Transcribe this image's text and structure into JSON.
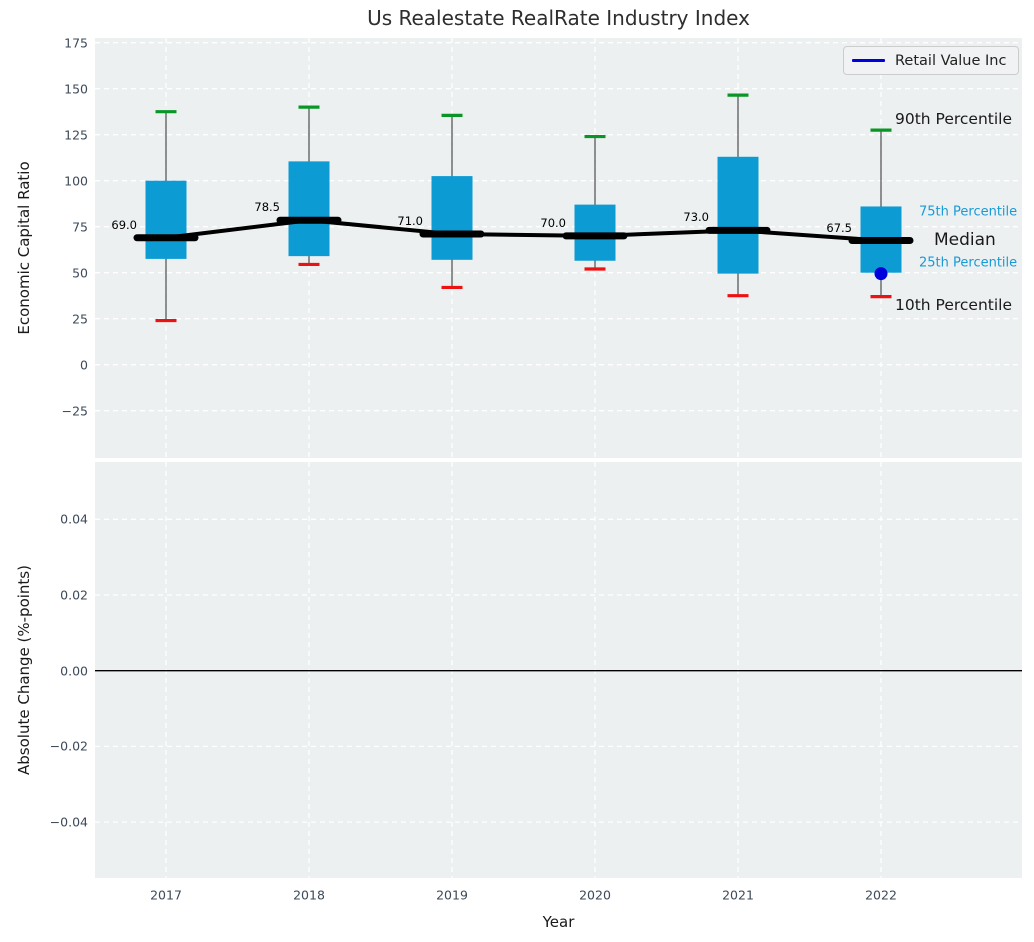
{
  "figure": {
    "legend": {
      "label": "Retail Value Inc"
    },
    "annotations": {
      "p90": "90th Percentile",
      "p75": "75th Percentile",
      "median": "Median",
      "p25": "25th Percentile",
      "p10": "10th Percentile"
    }
  },
  "colors": {
    "box_fill": "#0d9bd3",
    "whisker_line": "#4d4d4d",
    "cap_high_green": "#0a9626",
    "cap_low_red": "#ee1111",
    "median_black": "#000000",
    "company_blue": "#0000dd",
    "axes_bg": "#edf0f1",
    "grid_white": "#ffffff",
    "tick_text": "#3d4a59",
    "percentile_text_blue": "#189ad6",
    "zero_line_black": "#000000"
  },
  "chart_data": {
    "type": "boxplot",
    "title": "Us Realestate RealRate Industry Index",
    "xlabel": "Year",
    "categories": [
      "2017",
      "2018",
      "2019",
      "2020",
      "2021",
      "2022"
    ],
    "legend_entries": [
      "Retail Value Inc"
    ],
    "legend_position": "upper right",
    "grid": true,
    "top_panel": {
      "ylabel": "Economic Capital Ratio",
      "ylim": [
        -50,
        177
      ],
      "yticks": [
        {
          "label": "175",
          "v": 175
        },
        {
          "label": "150",
          "v": 150
        },
        {
          "label": "125",
          "v": 125
        },
        {
          "label": "100",
          "v": 100
        },
        {
          "label": "75",
          "v": 75
        },
        {
          "label": "50",
          "v": 50
        },
        {
          "label": "25",
          "v": 25
        },
        {
          "label": "0",
          "v": 0
        },
        {
          "label": "−25",
          "v": -25
        }
      ],
      "boxes": [
        {
          "year": "2017",
          "whislo": 24.0,
          "q1": 57.5,
          "med": 69.0,
          "q3": 100.0,
          "whishi": 137.5,
          "med_label": "69.0"
        },
        {
          "year": "2018",
          "whislo": 54.5,
          "q1": 59.0,
          "med": 78.5,
          "q3": 110.5,
          "whishi": 140.0,
          "med_label": "78.5"
        },
        {
          "year": "2019",
          "whislo": 42.0,
          "q1": 57.0,
          "med": 71.0,
          "q3": 102.5,
          "whishi": 135.5,
          "med_label": "71.0"
        },
        {
          "year": "2020",
          "whislo": 52.0,
          "q1": 56.5,
          "med": 70.0,
          "q3": 87.0,
          "whishi": 124.0,
          "med_label": "70.0"
        },
        {
          "year": "2021",
          "whislo": 37.5,
          "q1": 49.5,
          "med": 73.0,
          "q3": 113.0,
          "whishi": 146.5,
          "med_label": "73.0"
        },
        {
          "year": "2022",
          "whislo": 37.0,
          "q1": 50.0,
          "med": 67.5,
          "q3": 86.0,
          "whishi": 127.5,
          "med_label": "67.5"
        }
      ],
      "company_point": {
        "name": "Retail Value Inc",
        "year": "2022",
        "value": 49.5
      }
    },
    "bottom_panel": {
      "ylabel": "Absolute Change (%-points)",
      "ylim": [
        -0.055,
        0.055
      ],
      "yticks": [
        {
          "label": "0.04",
          "v": 0.04
        },
        {
          "label": "0.02",
          "v": 0.02
        },
        {
          "label": "0.00",
          "v": 0.0
        },
        {
          "label": "−0.02",
          "v": -0.02
        },
        {
          "label": "−0.04",
          "v": -0.04
        }
      ],
      "zero_line": 0.0,
      "series": []
    }
  }
}
